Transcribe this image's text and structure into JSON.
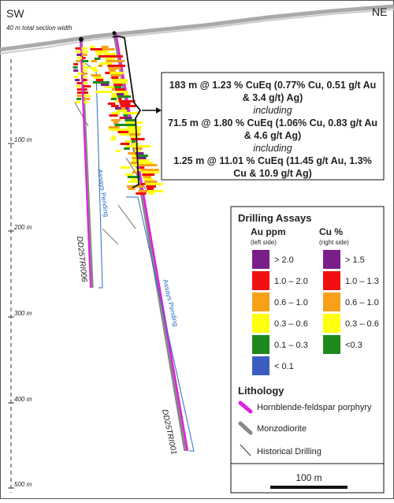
{
  "section": {
    "left_label": "SW",
    "right_label": "NE",
    "width_note": "40 m total section width",
    "depth_labels": [
      "100 m",
      "200 m",
      "300 m",
      "400 m",
      "500 m"
    ]
  },
  "holes": [
    {
      "id": "DD25TRI006",
      "status": "Assays Pending"
    },
    {
      "id": "DD25TRI001",
      "status": "Assays Pending"
    }
  ],
  "callout": {
    "lines": [
      "183 m @ 1.23 % CuEq (0.77% Cu, 0.51 g/t Au",
      "& 3.4 g/t) Ag)",
      "including",
      "71.5 m @ 1.80 % CuEq  (1.06% Cu, 0.83 g/t Au",
      "& 4.6 g/t Ag)",
      "including",
      "1.25 m @ 11.01 % CuEq (11.45 g/t Au, 1.3%",
      "Cu & 10.9 g/t Ag)"
    ]
  },
  "legend": {
    "title": "Drilling Assays",
    "au_header": "Au ppm",
    "au_sub": "(left side)",
    "au_items": [
      "> 2.0",
      "1.0 – 2.0",
      "0.6 – 1.0",
      "0.3 – 0.6",
      "0.1 – 0.3",
      "< 0.1"
    ],
    "cu_header": "Cu %",
    "cu_sub": "(right side)",
    "cu_items": [
      "> 1.5",
      "1.0 – 1.3",
      "0.6 – 1.0",
      "0.3 – 0.6",
      "<0.3"
    ],
    "lithology_title": "Lithology",
    "lithology_items": [
      "Hornblende-feldspar porphyry",
      "Monzodiorite",
      "Historical Drilling"
    ],
    "scale_label": "100 m"
  }
}
